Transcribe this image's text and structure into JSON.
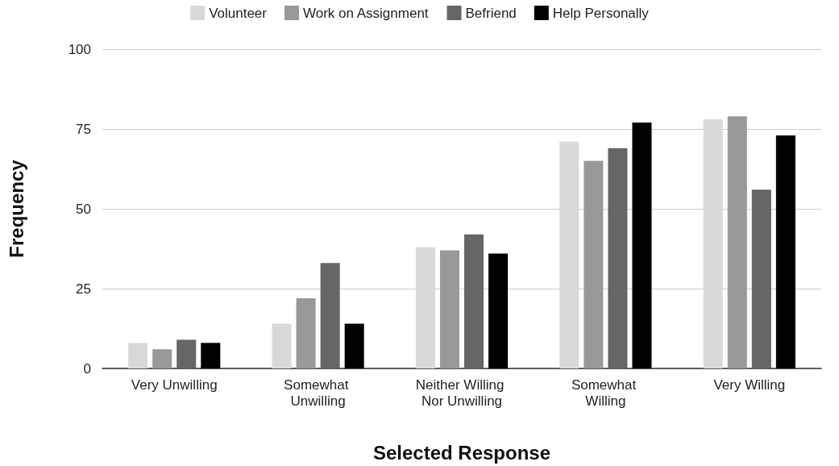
{
  "chart_data": {
    "type": "bar",
    "xlabel": "Selected Response",
    "ylabel": "Frequency",
    "categories": [
      "Very Unwilling",
      "Somewhat Unwilling",
      "Neither Willing Nor Unwilling",
      "Somewhat Willing",
      "Very Willing"
    ],
    "series": [
      {
        "name": "Volunteer",
        "color": "#d9d9d9",
        "values": [
          8,
          14,
          38,
          71,
          78
        ]
      },
      {
        "name": "Work on Assignment",
        "color": "#999999",
        "values": [
          6,
          22,
          37,
          65,
          79
        ]
      },
      {
        "name": "Befriend",
        "color": "#666666",
        "values": [
          9,
          33,
          42,
          69,
          56
        ]
      },
      {
        "name": "Help Personally",
        "color": "#000000",
        "values": [
          8,
          14,
          36,
          77,
          73
        ]
      }
    ],
    "ylim": [
      0,
      100
    ],
    "yticks": [
      0,
      25,
      50,
      75,
      100
    ],
    "grid": "y",
    "legend": "top"
  }
}
